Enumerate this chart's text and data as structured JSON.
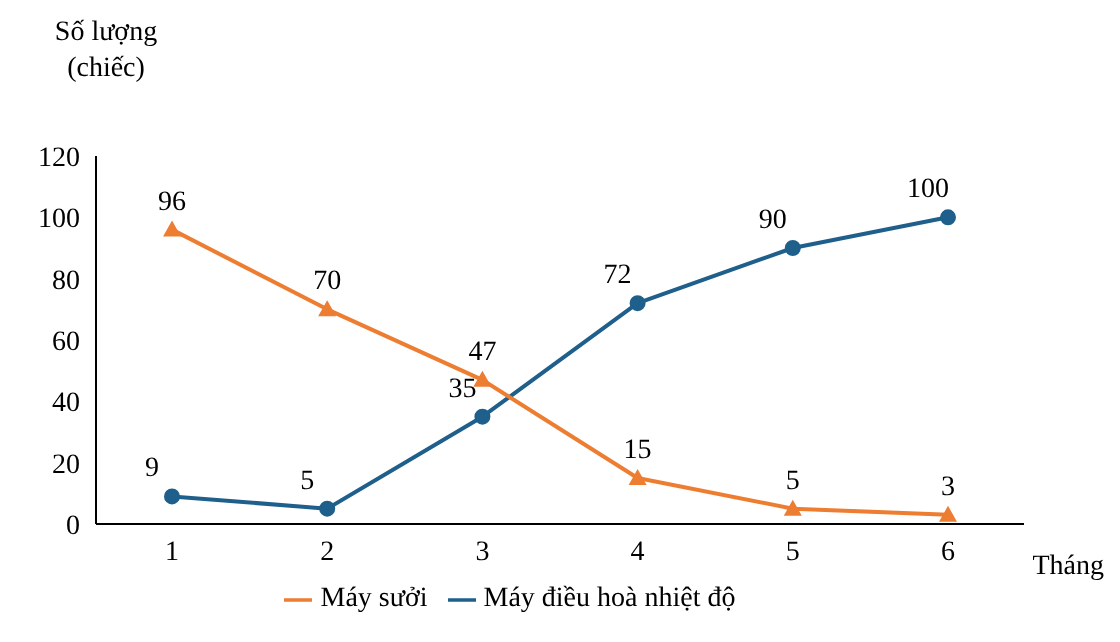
{
  "chart_data": {
    "type": "line",
    "xlabel": "Tháng",
    "ylabel": "Số lượng\n(chiếc)",
    "categories": [
      "1",
      "2",
      "3",
      "4",
      "5",
      "6"
    ],
    "series": [
      {
        "name": "Máy điều hoà nhiệt độ",
        "color": "#1f5f8b",
        "values": [
          9,
          5,
          35,
          72,
          90,
          100
        ],
        "marker": "circle"
      },
      {
        "name": "Máy sưởi",
        "color": "#ed7d31",
        "values": [
          96,
          70,
          47,
          15,
          5,
          3
        ],
        "marker": "triangle"
      }
    ],
    "ylim": [
      0,
      120
    ],
    "yticks": [
      0,
      20,
      40,
      60,
      80,
      100,
      120
    ],
    "data_labels": true,
    "legend": "bottom",
    "grid": false,
    "line_style": "solid"
  }
}
